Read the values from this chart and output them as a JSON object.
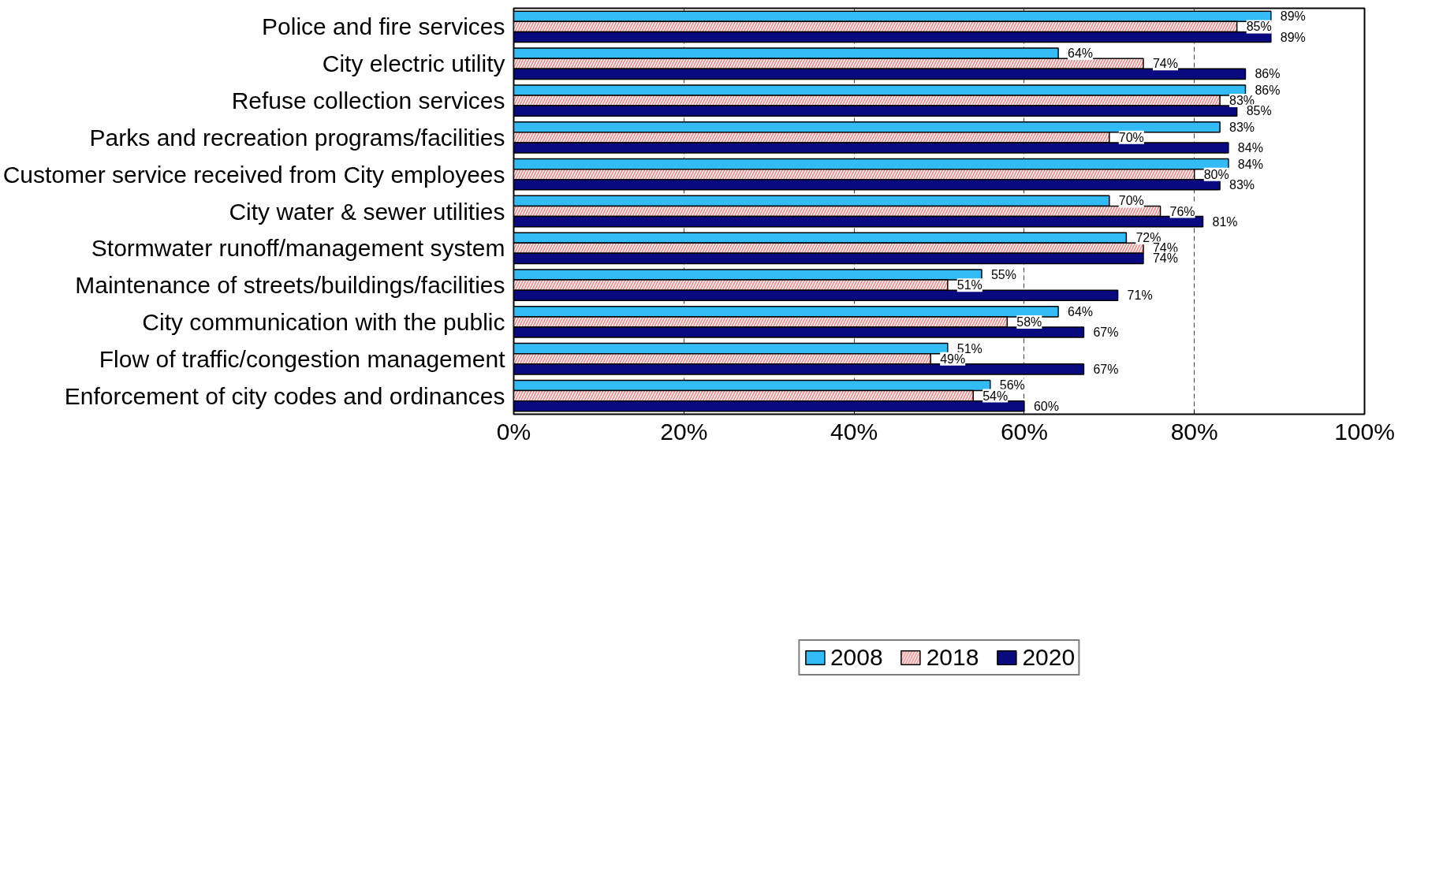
{
  "chart_data": {
    "type": "bar",
    "orientation": "horizontal",
    "categories": [
      "Police and fire services",
      "City electric utility",
      "Refuse collection services",
      "Parks and recreation programs/facilities",
      "Customer service received from City employees",
      "City water & sewer utilities",
      "Stormwater runoff/management system",
      "Maintenance of streets/buildings/facilities",
      "City communication with the public",
      "Flow of traffic/congestion management",
      "Enforcement of city codes and ordinances"
    ],
    "series": [
      {
        "name": "2008",
        "color": "#33bbf5",
        "values": [
          89,
          64,
          86,
          83,
          84,
          70,
          72,
          55,
          64,
          51,
          56
        ],
        "value_labels": [
          "89%",
          "64%",
          "86%",
          "83%",
          "84%",
          "70%",
          "72%",
          "55%",
          "64%",
          "51%",
          "56%"
        ]
      },
      {
        "name": "2018",
        "color": "#f08a8a",
        "values": [
          85,
          74,
          83,
          70,
          80,
          76,
          74,
          51,
          58,
          49,
          54
        ],
        "value_labels": [
          "85%",
          "74%",
          "83%",
          "70%",
          "80%",
          "76%",
          "74%",
          "51%",
          "58%",
          "49%",
          "54%"
        ]
      },
      {
        "name": "2020",
        "color": "#0a0a80",
        "values": [
          89,
          86,
          85,
          84,
          83,
          81,
          74,
          71,
          67,
          67,
          60
        ],
        "value_labels": [
          "89%",
          "86%",
          "85%",
          "84%",
          "83%",
          "81%",
          "74%",
          "71%",
          "67%",
          "67%",
          "60%"
        ]
      }
    ],
    "xlim": [
      0,
      100
    ],
    "xticks": [
      {
        "value": 0,
        "label": "0%"
      },
      {
        "value": 20,
        "label": "20%"
      },
      {
        "value": 40,
        "label": "40%"
      },
      {
        "value": 60,
        "label": "60%"
      },
      {
        "value": 80,
        "label": "80%"
      },
      {
        "value": 100,
        "label": "100%"
      }
    ],
    "grid": "x",
    "legend": "bottom"
  }
}
